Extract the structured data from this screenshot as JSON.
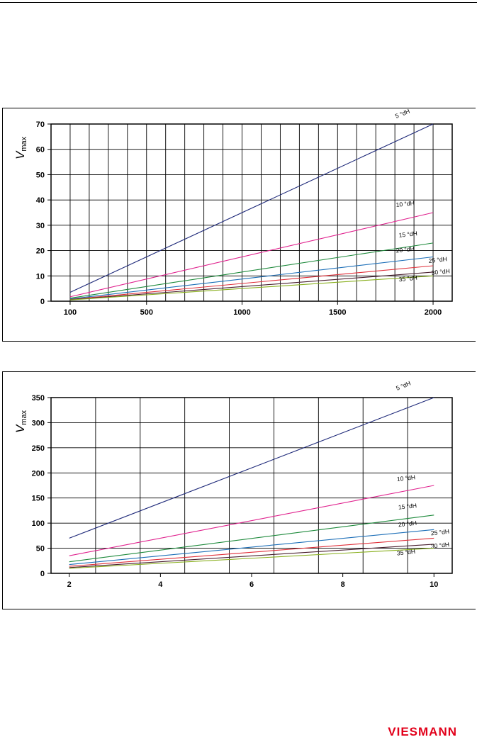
{
  "logo": {
    "text": "VIESMANN",
    "color": "#e2001a"
  },
  "line_colors": [
    "#1f2a7a",
    "#e0228e",
    "#1e8a3c",
    "#1d6fb8",
    "#e0303a",
    "#4a2030",
    "#8ab020"
  ],
  "chart_data": [
    {
      "type": "line",
      "title": "",
      "xlabel": "",
      "ylabel": "V",
      "ylabel_sub": "max",
      "xlim": [
        0,
        2100
      ],
      "ylim": [
        0,
        70
      ],
      "x_ticks": [
        100,
        500,
        1000,
        1500,
        2000
      ],
      "x_tick_labels": [
        "100",
        "500",
        "1000",
        "1500",
        "2000"
      ],
      "y_ticks": [
        0,
        10,
        20,
        30,
        40,
        50,
        60,
        70
      ],
      "y_tick_labels": [
        "0",
        "10",
        "20",
        "30",
        "40",
        "50",
        "60",
        "70"
      ],
      "grid": true,
      "series": [
        {
          "name": "5 °dH",
          "x": [
            100,
            2000
          ],
          "y": [
            3.5,
            70
          ]
        },
        {
          "name": "10 °dH",
          "x": [
            100,
            2000
          ],
          "y": [
            1.75,
            35
          ]
        },
        {
          "name": "15 °dH",
          "x": [
            100,
            2000
          ],
          "y": [
            1.2,
            23
          ]
        },
        {
          "name": "20 °dH",
          "x": [
            100,
            2000
          ],
          "y": [
            0.9,
            17.5
          ]
        },
        {
          "name": "25 °dH",
          "x": [
            100,
            2000
          ],
          "y": [
            0.7,
            14
          ]
        },
        {
          "name": "30 °dH",
          "x": [
            100,
            2000
          ],
          "y": [
            0.6,
            11.5
          ]
        },
        {
          "name": "35 °dH",
          "x": [
            100,
            2000
          ],
          "y": [
            0.5,
            10
          ]
        }
      ]
    },
    {
      "type": "line",
      "title": "",
      "xlabel": "",
      "ylabel": "V",
      "ylabel_sub": "max",
      "xlim": [
        1.6,
        10.4
      ],
      "ylim": [
        0,
        350
      ],
      "x_ticks": [
        2,
        4,
        6,
        8,
        10
      ],
      "x_tick_labels": [
        "2",
        "4",
        "6",
        "8",
        "10"
      ],
      "y_ticks": [
        0,
        50,
        100,
        150,
        200,
        250,
        300,
        350
      ],
      "y_tick_labels": [
        "0",
        "50",
        "100",
        "150",
        "200",
        "250",
        "300",
        "350"
      ],
      "grid": true,
      "series": [
        {
          "name": "5 °dH",
          "x": [
            2,
            10
          ],
          "y": [
            70,
            350
          ]
        },
        {
          "name": "10 °dH",
          "x": [
            2,
            10
          ],
          "y": [
            35,
            175
          ]
        },
        {
          "name": "15 °dH",
          "x": [
            2,
            10
          ],
          "y": [
            23,
            116
          ]
        },
        {
          "name": "20 °dH",
          "x": [
            2,
            10
          ],
          "y": [
            17.5,
            87
          ]
        },
        {
          "name": "25 °dH",
          "x": [
            2,
            10
          ],
          "y": [
            14,
            70
          ]
        },
        {
          "name": "30 °dH",
          "x": [
            2,
            10
          ],
          "y": [
            11.5,
            58
          ]
        },
        {
          "name": "35 °dH",
          "x": [
            2,
            10
          ],
          "y": [
            10,
            50
          ]
        }
      ]
    }
  ]
}
